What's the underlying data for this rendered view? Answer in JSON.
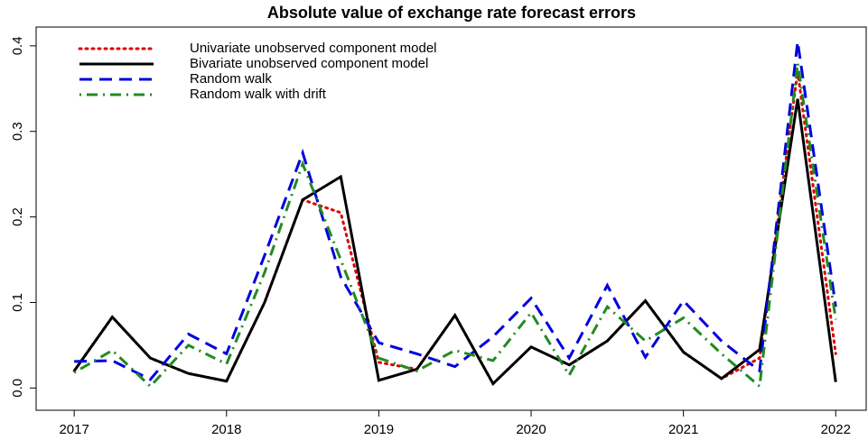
{
  "chart_data": {
    "type": "line",
    "title": "Absolute value of exchange rate forecast errors",
    "x": [
      2017,
      2017.25,
      2017.5,
      2017.75,
      2018,
      2018.25,
      2018.5,
      2018.75,
      2019,
      2019.25,
      2019.5,
      2019.75,
      2020,
      2020.25,
      2020.5,
      2020.75,
      2021,
      2021.25,
      2021.5,
      2021.75,
      2022
    ],
    "xlim": [
      2016.75,
      2022.2
    ],
    "xticks": [
      2017,
      2018,
      2019,
      2020,
      2021,
      2022
    ],
    "ylim": [
      -0.026,
      0.422
    ],
    "yticks": [
      {
        "value": 0,
        "label": "0.0"
      },
      0.1,
      0.2,
      0.3,
      0.4
    ],
    "legend": "top-left",
    "series": [
      {
        "name": "Univariate unobserved component model",
        "color": "#dd0000",
        "linestyle": "dotted",
        "values": [
          0.02,
          0.083,
          0.035,
          0.017,
          0.008,
          0.1,
          0.22,
          0.205,
          0.03,
          0.022,
          0.085,
          0.005,
          0.048,
          0.027,
          0.055,
          0.102,
          0.042,
          0.011,
          0.035,
          0.37,
          0.04
        ]
      },
      {
        "name": "Bivariate unobserved component model",
        "color": "#000000",
        "linestyle": "solid",
        "values": [
          0.02,
          0.083,
          0.035,
          0.017,
          0.008,
          0.1,
          0.22,
          0.247,
          0.009,
          0.022,
          0.085,
          0.005,
          0.048,
          0.027,
          0.055,
          0.102,
          0.042,
          0.011,
          0.045,
          0.338,
          0.007
        ]
      },
      {
        "name": "Random walk",
        "color": "#0000dd",
        "linestyle": "dashed",
        "values": [
          0.031,
          0.032,
          0.01,
          0.063,
          0.04,
          0.155,
          0.275,
          0.13,
          0.053,
          0.04,
          0.025,
          0.06,
          0.105,
          0.035,
          0.12,
          0.036,
          0.102,
          0.055,
          0.02,
          0.405,
          0.095
        ]
      },
      {
        "name": "Random walk with drift",
        "color": "#228b22",
        "linestyle": "dotdash",
        "values": [
          0.018,
          0.044,
          0.002,
          0.05,
          0.028,
          0.135,
          0.262,
          0.15,
          0.035,
          0.02,
          0.044,
          0.032,
          0.088,
          0.015,
          0.095,
          0.055,
          0.082,
          0.04,
          0.002,
          0.38,
          0.08
        ]
      }
    ]
  }
}
